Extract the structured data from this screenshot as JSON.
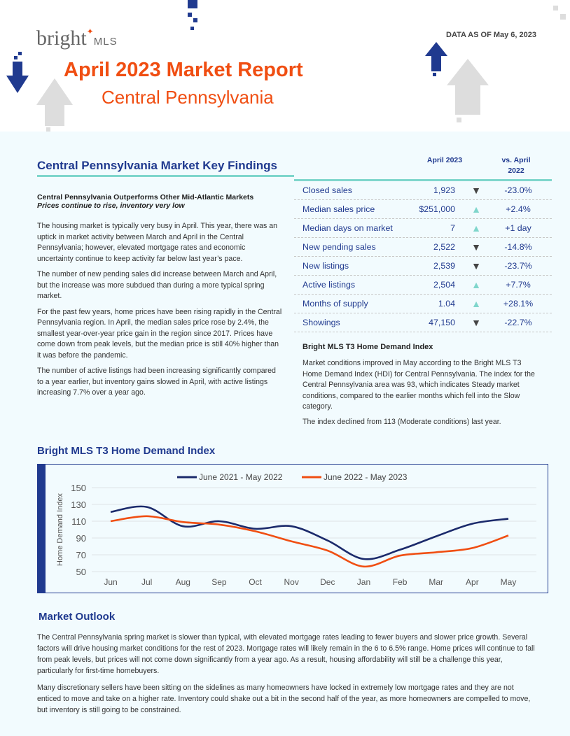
{
  "header": {
    "logo": "bright",
    "logo_suffix": "MLS",
    "data_as_of": "DATA AS OF May 6, 2023",
    "title": "April 2023 Market Report",
    "subtitle": "Central Pennsylvania"
  },
  "key_findings": {
    "heading": "Central Pennsylvania Market Key Findings",
    "headline": "Central Pennsylvania Outperforms Other Mid-Atlantic Markets",
    "subheadline": "Prices continue to rise, inventory very low",
    "paragraphs": [
      "The housing market is typically very busy in April. This year, there was an uptick in market activity between March and April in the Central Pennsylvania; however, elevated mortgage rates and economic uncertainty continue to keep activity far below last year’s pace.",
      "The number of new pending sales did increase between March and April, but the increase was more subdued than during a more typical spring market.",
      "For the past few years, home prices have been rising rapidly in the Central Pennsylvania region. In April, the median sales price rose by 2.4%, the smallest year-over-year price gain in the region since 2017. Prices have come down from peak levels, but the median price is still 40% higher than it was before the pandemic.",
      "The number of active listings had been increasing significantly compared to a year earlier, but inventory gains slowed in April, with active listings increasing 7.7% over a year ago."
    ]
  },
  "table": {
    "col1": "April 2023",
    "col2": "vs. April 2022",
    "rows": [
      {
        "metric": "Closed sales",
        "value": "1,923",
        "dir": "down",
        "change": "-23.0%"
      },
      {
        "metric": "Median sales price",
        "value": "$251,000",
        "dir": "up",
        "change": "+2.4%"
      },
      {
        "metric": "Median days on market",
        "value": "7",
        "dir": "up",
        "change": "+1 day"
      },
      {
        "metric": "New pending sales",
        "value": "2,522",
        "dir": "down",
        "change": "-14.8%"
      },
      {
        "metric": "New listings",
        "value": "2,539",
        "dir": "down",
        "change": "-23.7%"
      },
      {
        "metric": "Active listings",
        "value": "2,504",
        "dir": "up",
        "change": "+7.7%"
      },
      {
        "metric": "Months of supply",
        "value": "1.04",
        "dir": "up",
        "change": "+28.1%"
      },
      {
        "metric": "Showings",
        "value": "47,150",
        "dir": "down",
        "change": "-22.7%"
      }
    ]
  },
  "hdi": {
    "heading": "Bright MLS T3 Home Demand Index",
    "paragraphs": [
      "Market conditions improved in May according to the Bright MLS T3 Home Demand Index (HDI) for Central Pennsylvania. The index for the Central Pennsylvania area was 93, which indicates Steady market conditions, compared to the earlier months which fell into the Slow category.",
      "The index declined from 113 (Moderate conditions) last year."
    ]
  },
  "chart_heading": "Bright MLS T3 Home Demand Index",
  "chart_data": {
    "type": "line",
    "ylabel": "Home Demand Index",
    "ylim": [
      50,
      150
    ],
    "yticks": [
      50,
      70,
      90,
      110,
      130,
      150
    ],
    "grid": true,
    "legend": "top",
    "categories": [
      "Jun",
      "Jul",
      "Aug",
      "Sep",
      "Oct",
      "Nov",
      "Dec",
      "Jan",
      "Feb",
      "Mar",
      "Apr",
      "May"
    ],
    "series": [
      {
        "name": "June 2021 - May 2022",
        "color": "#1b2a6b",
        "values": [
          121,
          127,
          104,
          110,
          101,
          104,
          87,
          65,
          76,
          92,
          107,
          113
        ]
      },
      {
        "name": "June 2022 - May 2023",
        "color": "#f04e12",
        "values": [
          110,
          116,
          109,
          106,
          98,
          86,
          75,
          56,
          69,
          73,
          78,
          93
        ]
      }
    ]
  },
  "outlook": {
    "heading": "Market Outlook",
    "paragraphs": [
      "The Central Pennsylvania spring market is slower than typical,  with elevated mortgage rates  leading to fewer buyers and slower price growth. Several factors will drive housing market conditions for the rest of 2023. Mortgage rates will likely remain in the 6 to 6.5% range. Home prices will continue to fall from peak levels, but prices will not come down significantly from a year ago. As a result, housing affordability will still be a challenge this year, particularly for first-time homebuyers.",
      "Many discretionary sellers have been sitting on the sidelines as many homeowners have locked in extremely low mortgage rates and they are not enticed to move and take on a higher rate. Inventory could shake out a bit in the second half of the year, as more homeowners are compelled to move, but inventory is still going to be constrained."
    ]
  }
}
